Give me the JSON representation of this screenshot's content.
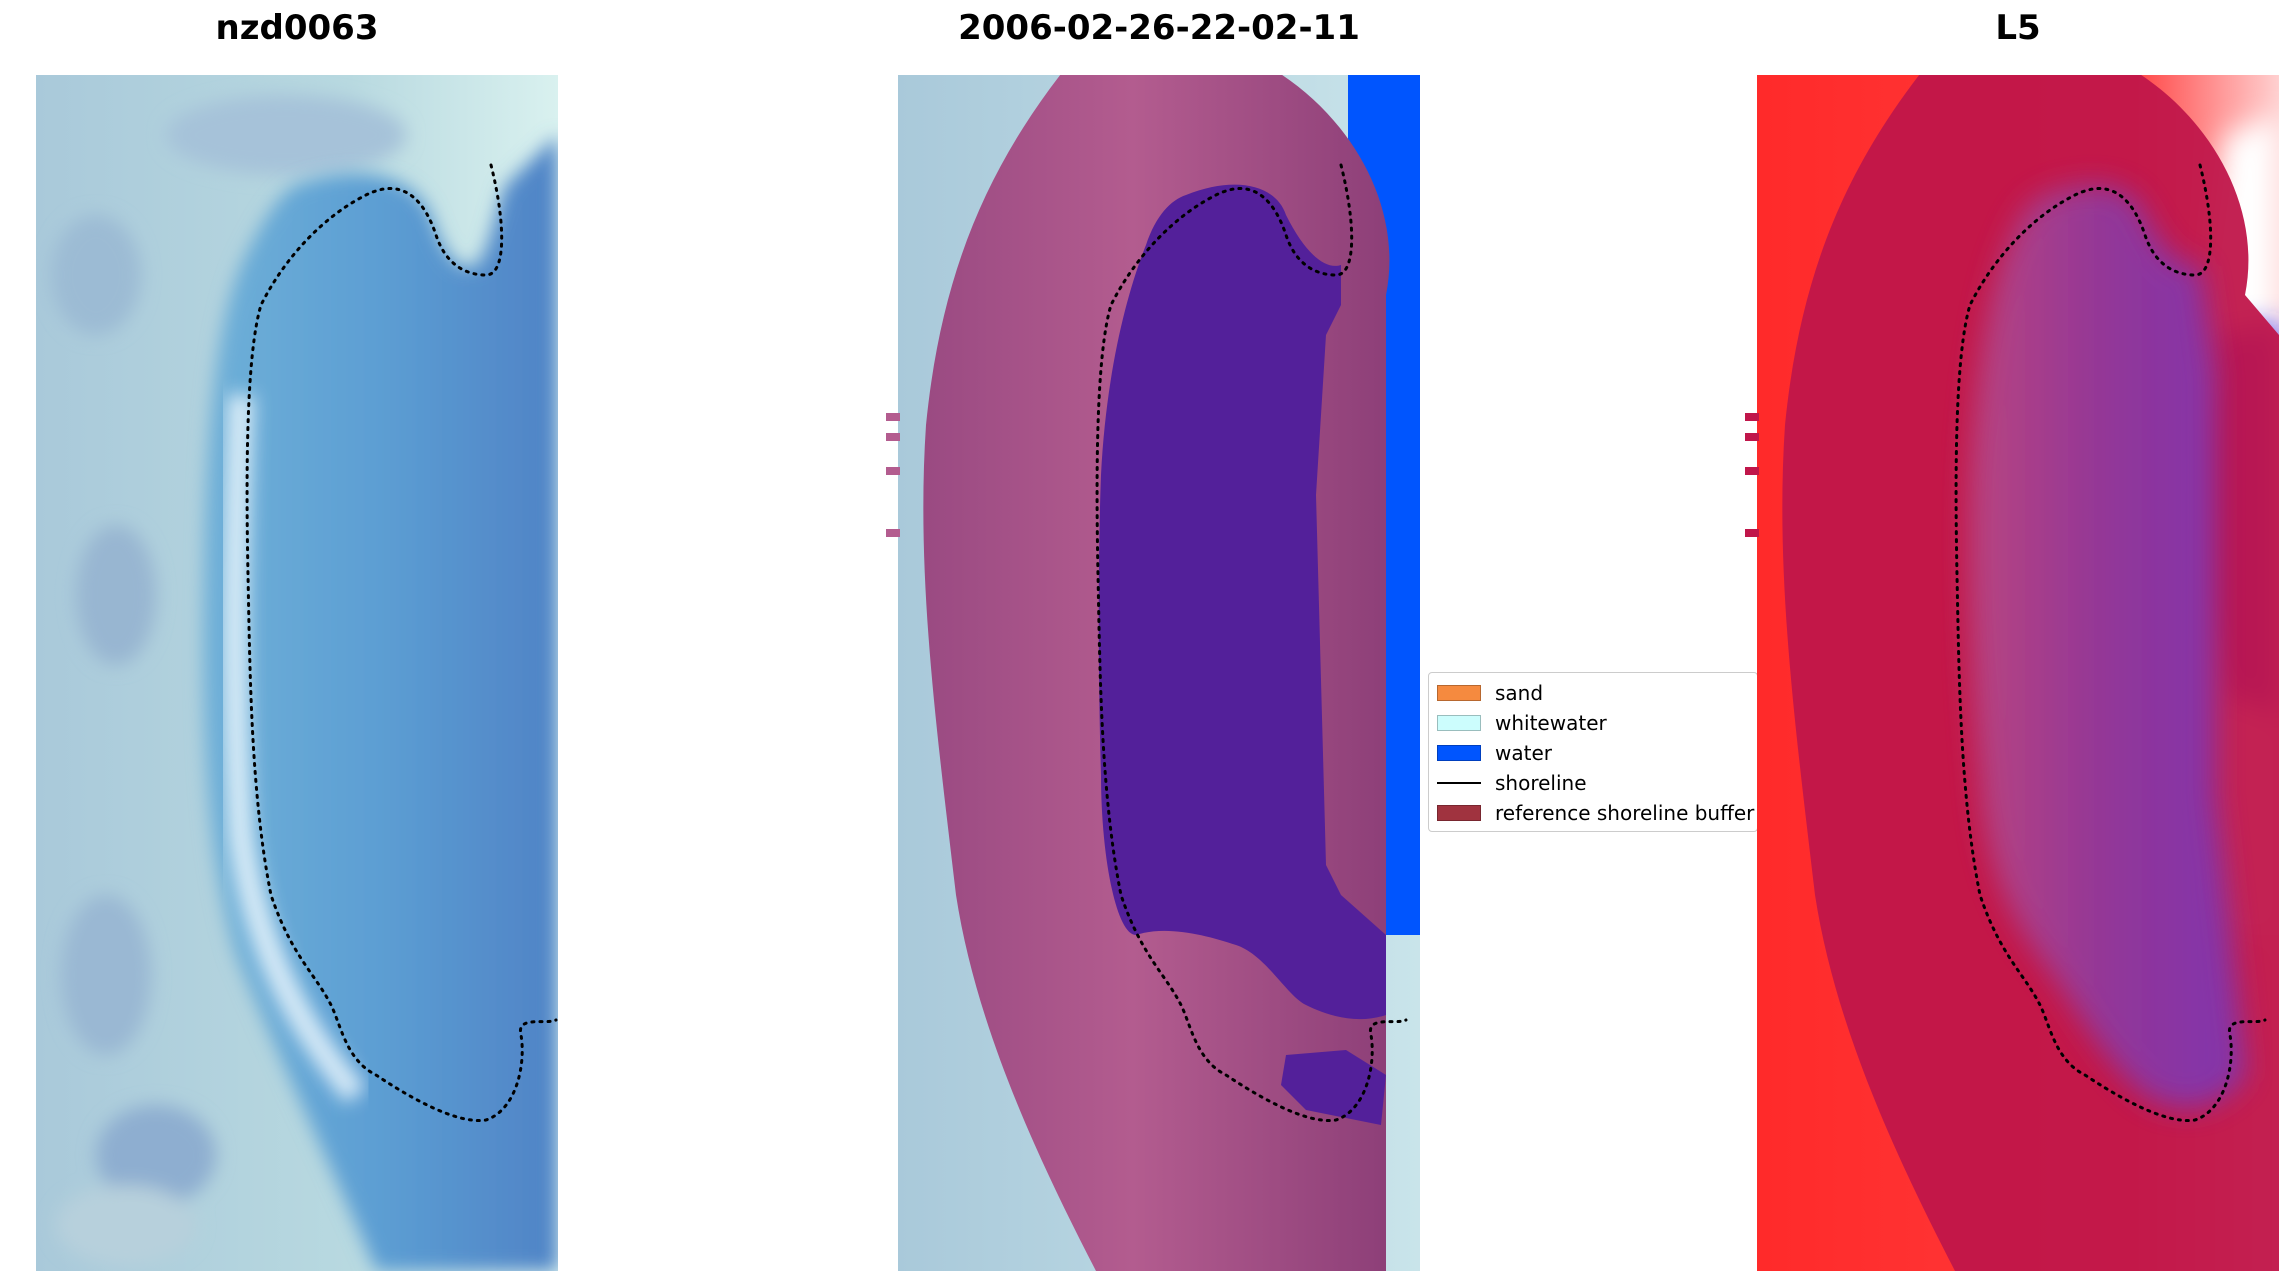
{
  "panels": [
    {
      "title": "nzd0063"
    },
    {
      "title": "2006-02-26-22-02-11"
    },
    {
      "title": "L5"
    }
  ],
  "legend": {
    "items": [
      {
        "label": "sand",
        "type": "patch",
        "color": "#f58a3f"
      },
      {
        "label": "whitewater",
        "type": "patch",
        "color": "#ccfdfd"
      },
      {
        "label": "water",
        "type": "patch",
        "color": "#0055fe"
      },
      {
        "label": "shoreline",
        "type": "line",
        "color": "#000000"
      },
      {
        "label": "reference shoreline buffer",
        "type": "patch",
        "color": "#a0333f"
      }
    ]
  },
  "chart_data": [
    {
      "type": "image",
      "title": "nzd0063",
      "content": "RGB satellite image with detected shoreline",
      "shoreline_style": "dotted",
      "axes": "off"
    },
    {
      "type": "image",
      "title": "2006-02-26-22-02-11",
      "content": "classified image (sand, whitewater, water) with reference shoreline buffer overlay",
      "shoreline_style": "dotted",
      "axes": "off"
    },
    {
      "type": "image",
      "title": "L5",
      "content": "MNDWI index image with reference shoreline buffer overlay",
      "colormap": "bwr",
      "shoreline_style": "dotted",
      "axes": "off"
    }
  ]
}
